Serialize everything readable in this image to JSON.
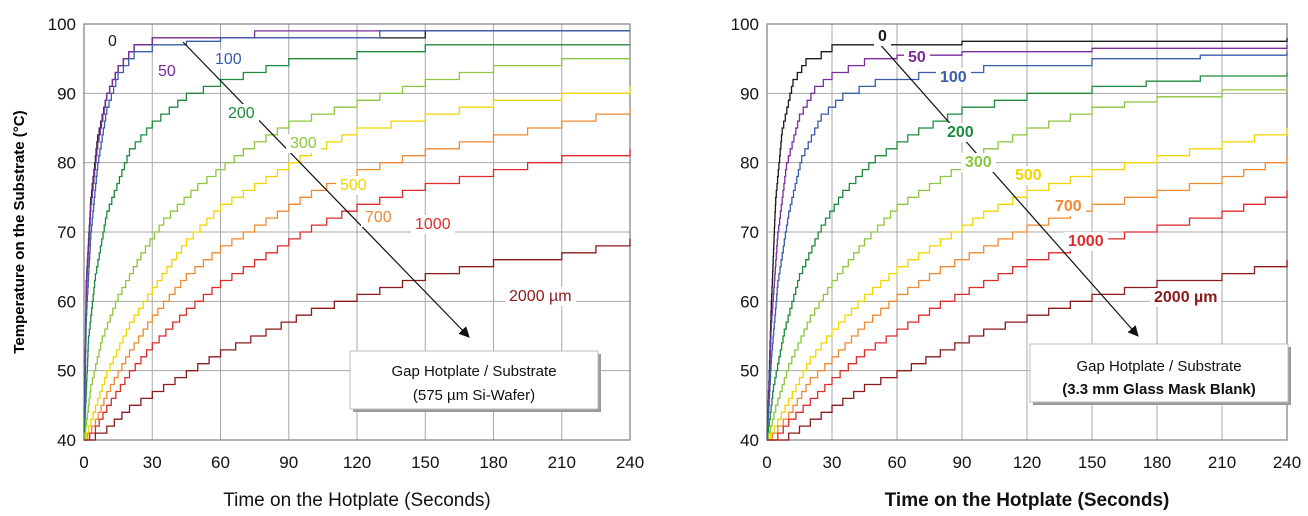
{
  "chart_data": [
    {
      "type": "line",
      "title": "",
      "xlabel": "Time on the Hotplate (Seconds)",
      "ylabel": "Temperature on the Substrate (°C)",
      "xlim": [
        0,
        240
      ],
      "ylim": [
        40,
        100
      ],
      "xticks": [
        0,
        30,
        60,
        90,
        120,
        150,
        180,
        210,
        240
      ],
      "yticks": [
        40,
        50,
        60,
        70,
        80,
        90,
        100
      ],
      "grid": true,
      "annotation_lines": [
        "Gap Hotplate / Substrate",
        "(575 µm Si-Wafer)"
      ],
      "series": [
        {
          "name": "0",
          "color": "#1a1a1a",
          "label_bold": false,
          "points": [
            [
              0,
              40
            ],
            [
              1,
              63
            ],
            [
              3,
              75
            ],
            [
              6,
              84
            ],
            [
              10,
              90
            ],
            [
              15,
              94
            ],
            [
              22,
              97
            ],
            [
              30,
              98
            ],
            [
              60,
              98
            ],
            [
              90,
              98
            ],
            [
              150,
              98
            ],
            [
              150,
              99
            ],
            [
              240,
              99
            ]
          ]
        },
        {
          "name": "50",
          "color": "#7b2c9e",
          "label_bold": false,
          "points": [
            [
              0,
              40
            ],
            [
              1,
              62
            ],
            [
              3,
              74
            ],
            [
              6,
              83
            ],
            [
              10,
              90
            ],
            [
              15,
              94
            ],
            [
              22,
              97
            ],
            [
              30,
              98
            ],
            [
              60,
              98
            ],
            [
              75,
              99
            ],
            [
              240,
              99
            ]
          ]
        },
        {
          "name": "100",
          "color": "#3b5bab",
          "label_bold": false,
          "points": [
            [
              0,
              40
            ],
            [
              1,
              58
            ],
            [
              3,
              70
            ],
            [
              6,
              80
            ],
            [
              10,
              88
            ],
            [
              15,
              93
            ],
            [
              22,
              96
            ],
            [
              30,
              97
            ],
            [
              45,
              97.5
            ],
            [
              60,
              98
            ],
            [
              90,
              98
            ],
            [
              130,
              98
            ],
            [
              130,
              99
            ],
            [
              240,
              99
            ]
          ]
        },
        {
          "name": "200",
          "color": "#1e8a3c",
          "label_bold": false,
          "points": [
            [
              0,
              40
            ],
            [
              2,
              55
            ],
            [
              5,
              64
            ],
            [
              10,
              73
            ],
            [
              20,
              82
            ],
            [
              30,
              86
            ],
            [
              45,
              90
            ],
            [
              60,
              92
            ],
            [
              90,
              95
            ],
            [
              120,
              96
            ],
            [
              150,
              97
            ],
            [
              240,
              97
            ]
          ]
        },
        {
          "name": "300",
          "color": "#8dc63f",
          "label_bold": false,
          "points": [
            [
              0,
              40
            ],
            [
              3,
              48
            ],
            [
              8,
              55
            ],
            [
              15,
              61
            ],
            [
              25,
              67
            ],
            [
              35,
              72
            ],
            [
              50,
              77
            ],
            [
              70,
              82
            ],
            [
              90,
              86
            ],
            [
              120,
              89
            ],
            [
              150,
              92
            ],
            [
              180,
              94
            ],
            [
              210,
              95
            ],
            [
              240,
              95
            ]
          ]
        },
        {
          "name": "500",
          "color": "#f2d500",
          "label_bold": false,
          "points": [
            [
              0,
              40
            ],
            [
              5,
              45
            ],
            [
              10,
              50
            ],
            [
              20,
              57
            ],
            [
              30,
              62
            ],
            [
              45,
              69
            ],
            [
              60,
              74
            ],
            [
              80,
              78
            ],
            [
              100,
              82
            ],
            [
              120,
              85
            ],
            [
              150,
              87
            ],
            [
              180,
              89
            ],
            [
              210,
              90
            ],
            [
              240,
              91
            ]
          ]
        },
        {
          "name": "700",
          "color": "#f08a30",
          "label_bold": false,
          "points": [
            [
              0,
              40
            ],
            [
              5,
              43
            ],
            [
              10,
              47
            ],
            [
              20,
              53
            ],
            [
              30,
              58
            ],
            [
              45,
              64
            ],
            [
              60,
              68
            ],
            [
              80,
              72
            ],
            [
              100,
              76
            ],
            [
              120,
              79
            ],
            [
              150,
              82
            ],
            [
              180,
              84
            ],
            [
              210,
              86
            ],
            [
              240,
              88
            ]
          ]
        },
        {
          "name": "1000",
          "color": "#e02b2b",
          "label_bold": false,
          "points": [
            [
              0,
              40
            ],
            [
              5,
              42
            ],
            [
              10,
              45
            ],
            [
              20,
              50
            ],
            [
              30,
              54
            ],
            [
              45,
              59
            ],
            [
              60,
              63
            ],
            [
              80,
              67
            ],
            [
              100,
              71
            ],
            [
              120,
              74
            ],
            [
              150,
              77
            ],
            [
              180,
              79
            ],
            [
              210,
              81
            ],
            [
              240,
              82
            ]
          ]
        },
        {
          "name": "2000 µm",
          "color": "#8b1a1a",
          "label_bold": false,
          "points": [
            [
              0,
              40
            ],
            [
              10,
              42
            ],
            [
              20,
              45
            ],
            [
              30,
              47
            ],
            [
              45,
              50
            ],
            [
              60,
              53
            ],
            [
              80,
              56
            ],
            [
              100,
              59
            ],
            [
              120,
              61
            ],
            [
              150,
              64
            ],
            [
              180,
              66
            ],
            [
              210,
              67
            ],
            [
              240,
              69
            ]
          ]
        }
      ]
    },
    {
      "type": "line",
      "title": "",
      "xlabel": "Time on the Hotplate (Seconds)",
      "ylabel": "",
      "xlim": [
        0,
        240
      ],
      "ylim": [
        40,
        100
      ],
      "xticks": [
        0,
        30,
        60,
        90,
        120,
        150,
        180,
        210,
        240
      ],
      "yticks": [
        40,
        50,
        60,
        70,
        80,
        90,
        100
      ],
      "grid": true,
      "annotation_lines": [
        "Gap Hotplate / Substrate",
        "(3.3 mm Glass Mask Blank)"
      ],
      "series": [
        {
          "name": "0",
          "color": "#1a1a1a",
          "label_bold": true,
          "points": [
            [
              0,
              40
            ],
            [
              2,
              60
            ],
            [
              4,
              75
            ],
            [
              7,
              85
            ],
            [
              12,
              92
            ],
            [
              18,
              95
            ],
            [
              25,
              96
            ],
            [
              30,
              97
            ],
            [
              60,
              97
            ],
            [
              90,
              97.5
            ],
            [
              150,
              97.5
            ],
            [
              240,
              98
            ]
          ]
        },
        {
          "name": "50",
          "color": "#7b2c9e",
          "label_bold": true,
          "points": [
            [
              0,
              40
            ],
            [
              2,
              57
            ],
            [
              5,
              70
            ],
            [
              9,
              80
            ],
            [
              15,
              87
            ],
            [
              22,
              91
            ],
            [
              30,
              93
            ],
            [
              45,
              95
            ],
            [
              60,
              95.5
            ],
            [
              90,
              96
            ],
            [
              150,
              96.5
            ],
            [
              240,
              97
            ]
          ]
        },
        {
          "name": "100",
          "color": "#3b5bab",
          "label_bold": true,
          "points": [
            [
              0,
              40
            ],
            [
              2,
              52
            ],
            [
              5,
              63
            ],
            [
              10,
              73
            ],
            [
              16,
              81
            ],
            [
              25,
              87
            ],
            [
              35,
              90
            ],
            [
              50,
              92
            ],
            [
              70,
              93
            ],
            [
              100,
              94
            ],
            [
              150,
              95
            ],
            [
              200,
              95.5
            ],
            [
              240,
              96
            ]
          ]
        },
        {
          "name": "200",
          "color": "#1e8a3c",
          "label_bold": true,
          "points": [
            [
              0,
              40
            ],
            [
              3,
              48
            ],
            [
              8,
              56
            ],
            [
              15,
              64
            ],
            [
              25,
              71
            ],
            [
              35,
              76
            ],
            [
              50,
              81
            ],
            [
              70,
              85
            ],
            [
              90,
              88
            ],
            [
              120,
              90
            ],
            [
              150,
              91
            ],
            [
              200,
              92.5
            ],
            [
              240,
              93
            ]
          ]
        },
        {
          "name": "300",
          "color": "#8dc63f",
          "label_bold": true,
          "points": [
            [
              0,
              40
            ],
            [
              4,
              45
            ],
            [
              10,
              51
            ],
            [
              20,
              58
            ],
            [
              30,
              63
            ],
            [
              45,
              69
            ],
            [
              60,
              74
            ],
            [
              80,
              78
            ],
            [
              100,
              82
            ],
            [
              120,
              85
            ],
            [
              150,
              88
            ],
            [
              180,
              89.5
            ],
            [
              210,
              90.5
            ],
            [
              240,
              91
            ]
          ]
        },
        {
          "name": "500",
          "color": "#f2d500",
          "label_bold": true,
          "points": [
            [
              0,
              40
            ],
            [
              5,
              43
            ],
            [
              10,
              46
            ],
            [
              20,
              52
            ],
            [
              30,
              56
            ],
            [
              45,
              61
            ],
            [
              60,
              65
            ],
            [
              80,
              69
            ],
            [
              100,
              73
            ],
            [
              120,
              76
            ],
            [
              150,
              79
            ],
            [
              180,
              81
            ],
            [
              210,
              83
            ],
            [
              240,
              85
            ]
          ]
        },
        {
          "name": "700",
          "color": "#f08a30",
          "label_bold": true,
          "points": [
            [
              0,
              40
            ],
            [
              5,
              42
            ],
            [
              10,
              44
            ],
            [
              20,
              49
            ],
            [
              30,
              52
            ],
            [
              45,
              57
            ],
            [
              60,
              61
            ],
            [
              80,
              65
            ],
            [
              100,
              68
            ],
            [
              120,
              71
            ],
            [
              150,
              74
            ],
            [
              180,
              76
            ],
            [
              210,
              78
            ],
            [
              240,
              81
            ]
          ]
        },
        {
          "name": "1000",
          "color": "#e02b2b",
          "label_bold": true,
          "points": [
            [
              0,
              40
            ],
            [
              5,
              41
            ],
            [
              10,
              43
            ],
            [
              20,
              46
            ],
            [
              30,
              49
            ],
            [
              45,
              53
            ],
            [
              60,
              56
            ],
            [
              80,
              60
            ],
            [
              100,
              63
            ],
            [
              120,
              66
            ],
            [
              150,
              69
            ],
            [
              180,
              71
            ],
            [
              210,
              73
            ],
            [
              240,
              76
            ]
          ]
        },
        {
          "name": "2000 µm",
          "color": "#8b1a1a",
          "label_bold": true,
          "points": [
            [
              0,
              40
            ],
            [
              10,
              41
            ],
            [
              20,
              43
            ],
            [
              30,
              45
            ],
            [
              45,
              48
            ],
            [
              60,
              50
            ],
            [
              80,
              53
            ],
            [
              100,
              56
            ],
            [
              120,
              58
            ],
            [
              150,
              61
            ],
            [
              180,
              63
            ],
            [
              210,
              64
            ],
            [
              240,
              66
            ]
          ]
        }
      ]
    }
  ]
}
